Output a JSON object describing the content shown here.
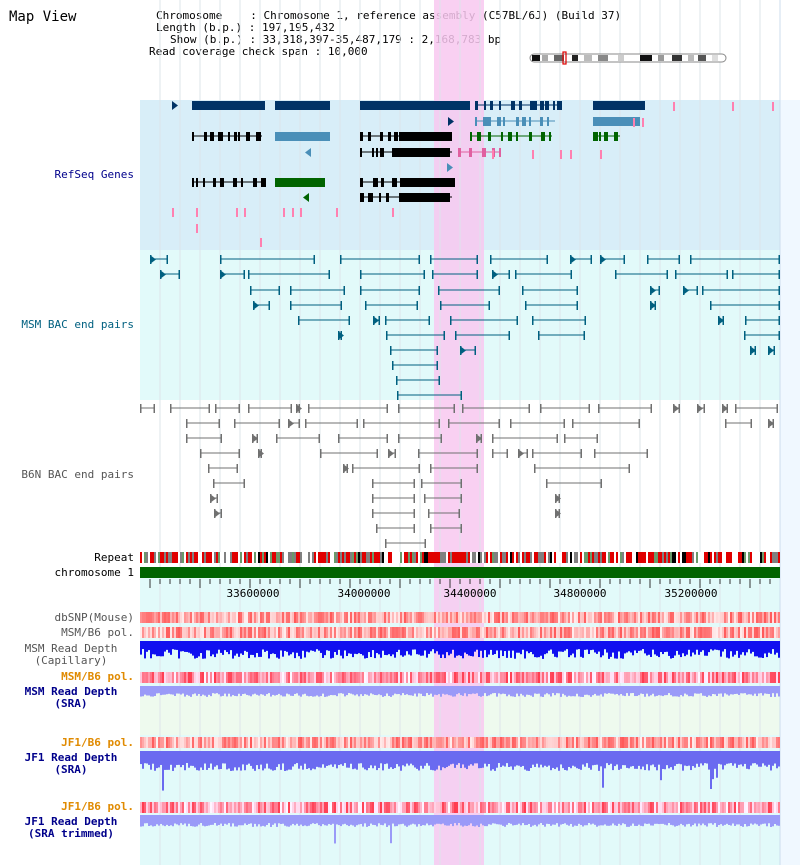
{
  "page": {
    "title": "Map View"
  },
  "header": {
    "chromosome_label": "Chromosome",
    "chromosome_value": "Chromosome 1, reference assembly (C57BL/6J) (Build 37)",
    "length_label": "Length (b.p.)",
    "length_value": "197,195,432",
    "show_label": "Show (b.p.)",
    "show_value": "33,318,397-35,487,179 : 2,168,783 bp",
    "span_label": "Read coverage check span",
    "span_value": "10,000"
  },
  "tracks": {
    "refseq": {
      "label": "RefSeq Genes",
      "color": "#00008b"
    },
    "msm_bac": {
      "label": "MSM BAC end pairs",
      "color": "#006080"
    },
    "b6n_bac": {
      "label": "B6N BAC end pairs",
      "color": "#555555"
    },
    "repeat": {
      "label": "Repeat"
    },
    "chromosome": {
      "label": "chromosome 1"
    },
    "dbsnp": {
      "label": "dbSNP(Mouse)",
      "color": "#555555"
    },
    "msm_b6_pol": {
      "label": "MSM/B6 pol.",
      "color": "#555555"
    },
    "msm_depth_cap": {
      "line1": "MSM Read Depth",
      "line2": "(Capillary)",
      "color": "#555555"
    },
    "msm_b6_pol2": {
      "label": "MSM/B6 pol.",
      "color": "#e08a00"
    },
    "msm_depth_sra": {
      "line1": "MSM Read Depth",
      "line2": "(SRA)",
      "color": "#00008b"
    },
    "jf1_b6_pol": {
      "label": "JF1/B6 pol.",
      "color": "#e08a00"
    },
    "jf1_depth_sra": {
      "line1": "JF1 Read Depth",
      "line2": "(SRA)",
      "color": "#00008b"
    },
    "jf1_b6_pol2": {
      "label": "JF1/B6 pol.",
      "color": "#e08a00"
    },
    "jf1_depth_trim": {
      "line1": "JF1 Read Depth",
      "line2": "(SRA trimmed)",
      "color": "#00008b"
    }
  },
  "axis": {
    "ticks": [
      "33600000",
      "34000000",
      "34400000",
      "34800000",
      "35200000"
    ]
  },
  "colors": {
    "highlight": "#f8c8f0",
    "refseq_bg": "#d8eef8",
    "bac_bg": "#e2fafa",
    "gene_dark": "#003366",
    "gene_mid": "#4a8fb8",
    "gene_green": "#006400",
    "msm_line": "#006080",
    "b6n_line": "#707070",
    "chrom_bar": "#006400",
    "repeat_red": "#e00000"
  }
}
